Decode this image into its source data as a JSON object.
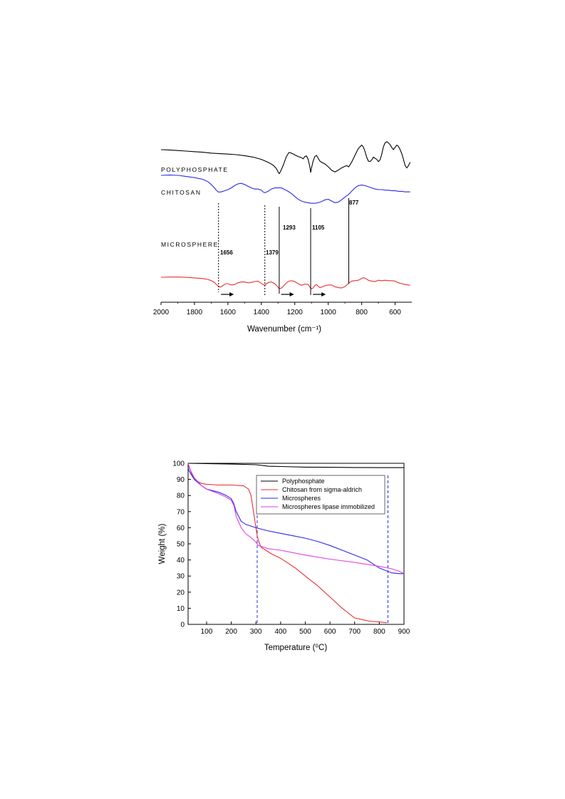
{
  "chart_data": [
    {
      "type": "line",
      "xlabel": "Wavenumber (cm⁻¹)",
      "ylabel": "",
      "xlim": [
        2000,
        500
      ],
      "xticks": [
        2000,
        1800,
        1600,
        1400,
        1200,
        1000,
        800,
        600
      ],
      "y_axis_shown": false,
      "grid": false,
      "series_labels": [
        "POLYPHOSPHATE",
        "CHITOSAN",
        "MICROSPHERE"
      ],
      "series": [
        {
          "name": "POLYPHOSPHATE",
          "color": "#000000",
          "x": [
            2000,
            1950,
            1900,
            1850,
            1800,
            1750,
            1700,
            1650,
            1600,
            1550,
            1500,
            1450,
            1400,
            1360,
            1330,
            1310,
            1300,
            1293,
            1285,
            1270,
            1250,
            1235,
            1220,
            1200,
            1180,
            1160,
            1150,
            1140,
            1130,
            1120,
            1110,
            1105,
            1100,
            1090,
            1080,
            1070,
            1060,
            1050,
            1040,
            1020,
            1000,
            980,
            960,
            940,
            920,
            900,
            890,
            877,
            860,
            840,
            820,
            800,
            790,
            780,
            770,
            760,
            750,
            740,
            730,
            720,
            710,
            700,
            690,
            680,
            670,
            660,
            650,
            640,
            630,
            620,
            610,
            600,
            590,
            580,
            570,
            560,
            550,
            540,
            530,
            520,
            510
          ],
          "y": [
            50,
            49.5,
            48.5,
            47.5,
            46.5,
            45.5,
            44,
            43,
            42.3,
            41.2,
            39.5,
            37,
            33,
            28,
            23,
            17,
            11,
            8,
            12,
            22,
            38,
            45,
            44,
            41,
            38,
            36,
            34,
            38,
            39,
            33,
            20,
            10,
            18,
            30,
            38,
            40,
            35,
            30,
            28,
            25,
            20,
            14,
            11,
            14,
            18,
            21,
            22,
            20,
            28,
            40,
            52,
            58,
            55,
            47,
            37,
            30,
            29,
            32,
            37,
            35,
            33,
            29,
            32,
            42,
            55,
            62,
            64,
            62,
            59,
            54,
            50,
            54,
            58,
            56,
            50,
            43,
            33,
            22,
            18,
            22,
            28
          ]
        },
        {
          "name": "CHITOSAN",
          "color": "#2a2ae8",
          "x": [
            2000,
            1950,
            1900,
            1850,
            1800,
            1750,
            1720,
            1700,
            1680,
            1670,
            1656,
            1640,
            1620,
            1600,
            1580,
            1560,
            1540,
            1520,
            1500,
            1480,
            1460,
            1440,
            1420,
            1400,
            1390,
            1379,
            1370,
            1355,
            1340,
            1320,
            1300,
            1280,
            1260,
            1240,
            1220,
            1200,
            1180,
            1160,
            1140,
            1120,
            1100,
            1080,
            1060,
            1040,
            1020,
            1000,
            980,
            960,
            940,
            920,
            900,
            880,
            860,
            840,
            820,
            800,
            780,
            760,
            740,
            720,
            700,
            680,
            660,
            640,
            620,
            600,
            580,
            560,
            540,
            520,
            510
          ],
          "y": [
            80,
            80.5,
            80,
            78,
            76,
            73,
            69,
            64,
            58,
            54,
            50.5,
            51,
            53,
            55,
            58,
            62,
            65,
            66,
            64,
            61,
            58,
            56,
            56,
            54,
            51,
            49.5,
            50.5,
            53,
            56,
            58,
            58,
            58,
            55,
            52,
            48,
            43,
            38,
            35,
            33,
            32,
            31,
            31,
            32,
            34,
            37,
            38,
            35,
            32,
            33,
            37,
            42,
            46,
            52,
            58,
            62,
            63,
            62,
            60,
            58,
            56,
            55,
            55,
            54,
            54,
            53,
            53,
            52,
            52,
            51,
            51,
            51
          ]
        },
        {
          "name": "MICROSPHERE",
          "color": "#e83030",
          "x": [
            2000,
            1950,
            1900,
            1850,
            1800,
            1750,
            1720,
            1700,
            1680,
            1670,
            1656,
            1650,
            1640,
            1625,
            1610,
            1600,
            1580,
            1560,
            1540,
            1520,
            1500,
            1480,
            1460,
            1440,
            1420,
            1400,
            1390,
            1379,
            1370,
            1355,
            1340,
            1320,
            1300,
            1293,
            1285,
            1275,
            1260,
            1240,
            1220,
            1200,
            1180,
            1160,
            1140,
            1120,
            1110,
            1100,
            1090,
            1080,
            1070,
            1060,
            1050,
            1040,
            1020,
            1000,
            980,
            960,
            940,
            920,
            900,
            880,
            860,
            840,
            820,
            800,
            790,
            780,
            760,
            740,
            720,
            700,
            680,
            660,
            640,
            620,
            600,
            580,
            560,
            540,
            520,
            510
          ],
          "y": [
            35,
            35.5,
            35.5,
            34.8,
            33.5,
            32,
            30,
            27,
            23,
            18.5,
            14,
            12,
            13,
            17,
            20,
            20,
            17,
            18,
            22,
            24,
            24,
            22,
            23,
            25,
            26,
            21,
            18,
            16,
            20,
            23,
            24,
            20,
            12,
            8,
            8.5,
            11,
            18,
            25,
            27,
            25,
            20,
            16,
            19,
            18,
            12,
            8,
            10,
            16,
            18,
            14,
            11,
            12,
            15,
            17,
            17,
            13,
            11,
            10,
            13,
            20,
            26,
            27,
            28,
            32,
            34,
            33,
            28,
            26,
            25,
            28,
            27,
            28,
            27,
            27,
            26,
            22,
            20,
            18,
            17,
            16
          ]
        }
      ],
      "annotations": [
        {
          "label": "1656",
          "x": 1656,
          "style": "dotted"
        },
        {
          "label": "1379",
          "x": 1379,
          "style": "dotted"
        },
        {
          "label": "1293",
          "x": 1293,
          "style": "solid"
        },
        {
          "label": "1105",
          "x": 1105,
          "style": "solid"
        },
        {
          "label": "877",
          "x": 877,
          "style": "solid"
        }
      ],
      "arrows": [
        1650,
        1290,
        1100
      ],
      "arrow_direction": "right"
    },
    {
      "type": "line",
      "xlabel": "Temperature (⁰C)",
      "ylabel": "Weight (%)",
      "xlim": [
        25,
        900
      ],
      "ylim": [
        0,
        100
      ],
      "xticks": [
        100,
        200,
        300,
        400,
        500,
        600,
        700,
        800,
        900
      ],
      "yticks": [
        0,
        10,
        20,
        30,
        40,
        50,
        60,
        70,
        80,
        90,
        100
      ],
      "grid": false,
      "legend_position": "top-right",
      "reference_lines": [
        305,
        835
      ],
      "series": [
        {
          "name": "Polyphosphate",
          "color": "#000000",
          "x": [
            25,
            100,
            200,
            300,
            350,
            400,
            500,
            600,
            700,
            800,
            900
          ],
          "y": [
            100,
            99.8,
            99.5,
            99.1,
            98.2,
            98,
            97.6,
            97.5,
            97.4,
            97.3,
            97.3
          ]
        },
        {
          "name": "Chitosan from sigma-aldrich",
          "color": "#e83030",
          "x": [
            25,
            40,
            60,
            80,
            100,
            150,
            200,
            250,
            270,
            280,
            290,
            300,
            305,
            310,
            320,
            340,
            360,
            380,
            400,
            430,
            460,
            500,
            550,
            600,
            650,
            700,
            730,
            760,
            800,
            830
          ],
          "y": [
            100,
            93,
            89,
            87.5,
            87,
            86.5,
            86.5,
            86,
            84,
            80,
            70,
            60,
            55,
            52,
            48,
            46,
            44,
            42.5,
            41,
            38,
            35,
            30,
            24,
            17,
            10,
            4,
            3,
            2,
            1.5,
            1
          ]
        },
        {
          "name": "Microspheres",
          "color": "#2a2ae8",
          "x": [
            25,
            30,
            50,
            80,
            100,
            150,
            180,
            200,
            210,
            220,
            240,
            260,
            280,
            300,
            350,
            400,
            450,
            500,
            550,
            600,
            650,
            700,
            750,
            800,
            850,
            880,
            900
          ],
          "y": [
            97,
            95,
            90,
            86,
            84,
            82,
            80,
            78,
            75,
            70,
            64,
            62,
            61,
            60,
            58,
            56.5,
            55,
            53.5,
            51.5,
            49,
            46,
            43,
            40,
            35,
            32,
            31.5,
            31.5
          ]
        },
        {
          "name": "Microspheres lipase immobilized",
          "color": "#e33be3",
          "x": [
            25,
            30,
            50,
            80,
            100,
            150,
            180,
            200,
            210,
            220,
            240,
            260,
            280,
            300,
            310,
            330,
            350,
            400,
            500,
            600,
            700,
            800,
            850,
            880,
            900
          ],
          "y": [
            100,
            97,
            91,
            86,
            84,
            81,
            79,
            77,
            74,
            67,
            60,
            56,
            54,
            51,
            49,
            48,
            47,
            46,
            43,
            40.5,
            38.5,
            36,
            34.5,
            33,
            31.5
          ]
        }
      ]
    }
  ]
}
